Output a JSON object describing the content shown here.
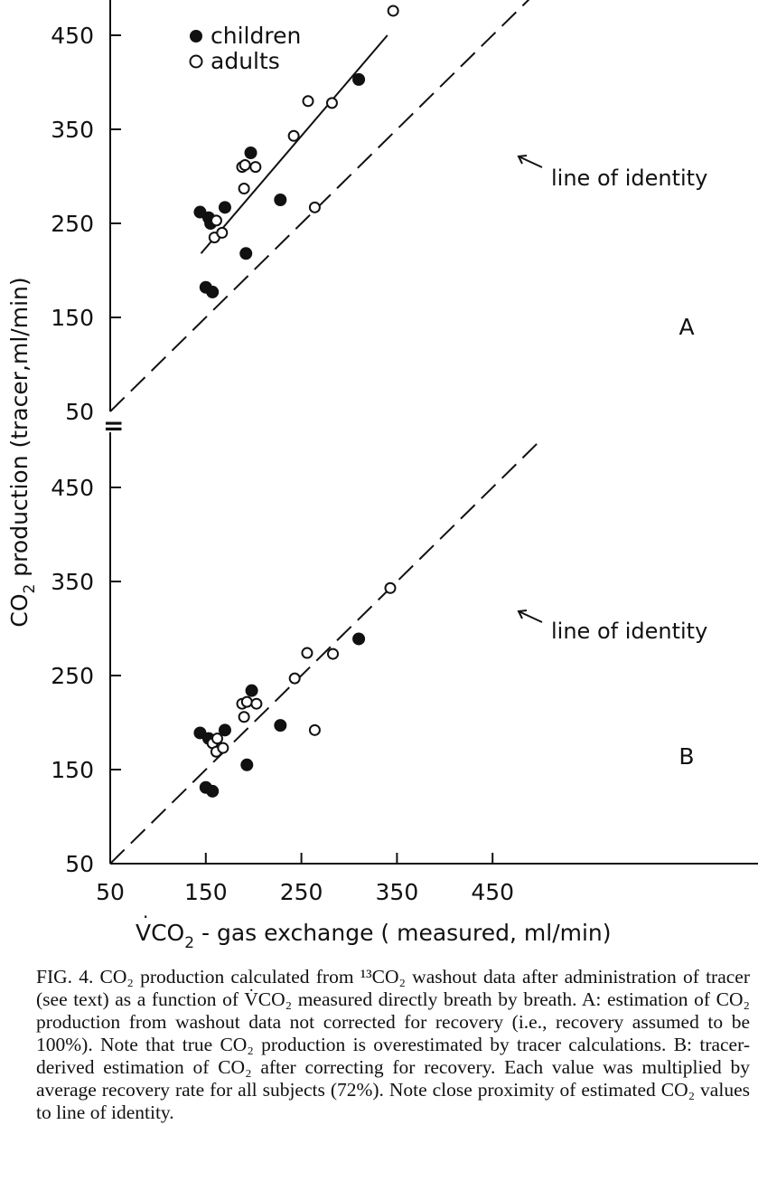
{
  "figure": {
    "y_axis_label_main": "CO",
    "y_axis_label_sub": "2",
    "y_axis_label_rest": " production  (tracer,ml/min)",
    "x_axis_label": "VCO",
    "x_axis_label_sub": "2",
    "x_axis_label_rest": " - gas exchange  ( measured, ml/min)",
    "axis_break_symbol": "=",
    "legend": {
      "children": "children",
      "adults": "adults"
    },
    "colors": {
      "ink": "#111111",
      "background": "#ffffff"
    }
  },
  "chart_data": [
    {
      "type": "scatter",
      "panel": "A",
      "panel_label": "A",
      "annotation": "line of identity",
      "xlim": [
        50,
        500
      ],
      "ylim": [
        50,
        500
      ],
      "x_ticks": [
        50,
        150,
        250,
        350,
        450
      ],
      "y_ticks": [
        50,
        150,
        250,
        350,
        450
      ],
      "y_tick_labels": [
        "50",
        "150",
        "250",
        "350",
        "450"
      ],
      "lines": [
        {
          "style": "solid",
          "x": [
            145,
            340
          ],
          "y": [
            218,
            450
          ]
        },
        {
          "style": "dashed",
          "x": [
            50,
            500
          ],
          "y": [
            50,
            500
          ]
        }
      ],
      "series": [
        {
          "name": "children",
          "marker": "filled-circle",
          "x": [
            144,
            150,
            153,
            155,
            157,
            170,
            192,
            197,
            228,
            310
          ],
          "y": [
            262,
            182,
            256,
            250,
            177,
            267,
            218,
            325,
            275,
            403
          ]
        },
        {
          "name": "adults",
          "marker": "open-circle",
          "x": [
            159,
            161,
            167,
            188,
            190,
            191,
            202,
            242,
            257,
            264,
            282,
            346
          ],
          "y": [
            235,
            253,
            240,
            310,
            287,
            312,
            310,
            343,
            380,
            267,
            378,
            476
          ]
        }
      ]
    },
    {
      "type": "scatter",
      "panel": "B",
      "panel_label": "B",
      "annotation": "line of identity",
      "xlim": [
        50,
        500
      ],
      "ylim": [
        50,
        500
      ],
      "x_ticks": [
        50,
        150,
        250,
        350,
        450
      ],
      "x_tick_labels": [
        "50",
        "150",
        "250",
        "350",
        "450"
      ],
      "y_ticks": [
        50,
        150,
        250,
        350,
        450
      ],
      "y_tick_labels": [
        "50",
        "150",
        "250",
        "350",
        "450"
      ],
      "lines": [
        {
          "style": "dashed",
          "x": [
            50,
            500
          ],
          "y": [
            50,
            500
          ]
        }
      ],
      "series": [
        {
          "name": "children",
          "marker": "filled-circle",
          "x": [
            144,
            150,
            153,
            157,
            170,
            193,
            198,
            228,
            310
          ],
          "y": [
            189,
            131,
            183,
            127,
            192,
            155,
            234,
            197,
            289
          ]
        },
        {
          "name": "adults",
          "marker": "open-circle",
          "x": [
            157,
            161,
            162,
            168,
            188,
            190,
            193,
            203,
            243,
            256,
            264,
            283,
            343
          ],
          "y": [
            178,
            169,
            183,
            173,
            220,
            206,
            222,
            220,
            247,
            274,
            192,
            273,
            343
          ]
        }
      ]
    }
  ],
  "caption": {
    "lead": "FIG. 4.",
    "text": " CO₂ production calculated from ¹³CO₂ washout data after administration of tracer (see text) as a function of V̇CO₂ measured directly breath by breath. A: estimation of CO₂ production from washout data not corrected for recovery (i.e., recovery assumed to be 100%). Note that true CO₂ production is overestimated by tracer calculations. B: tracer-derived estimation of CO₂ after correcting for recovery. Each value was multiplied by average recovery rate for all subjects (72%). Note close proximity of estimated CO₂ values to line of identity."
  }
}
